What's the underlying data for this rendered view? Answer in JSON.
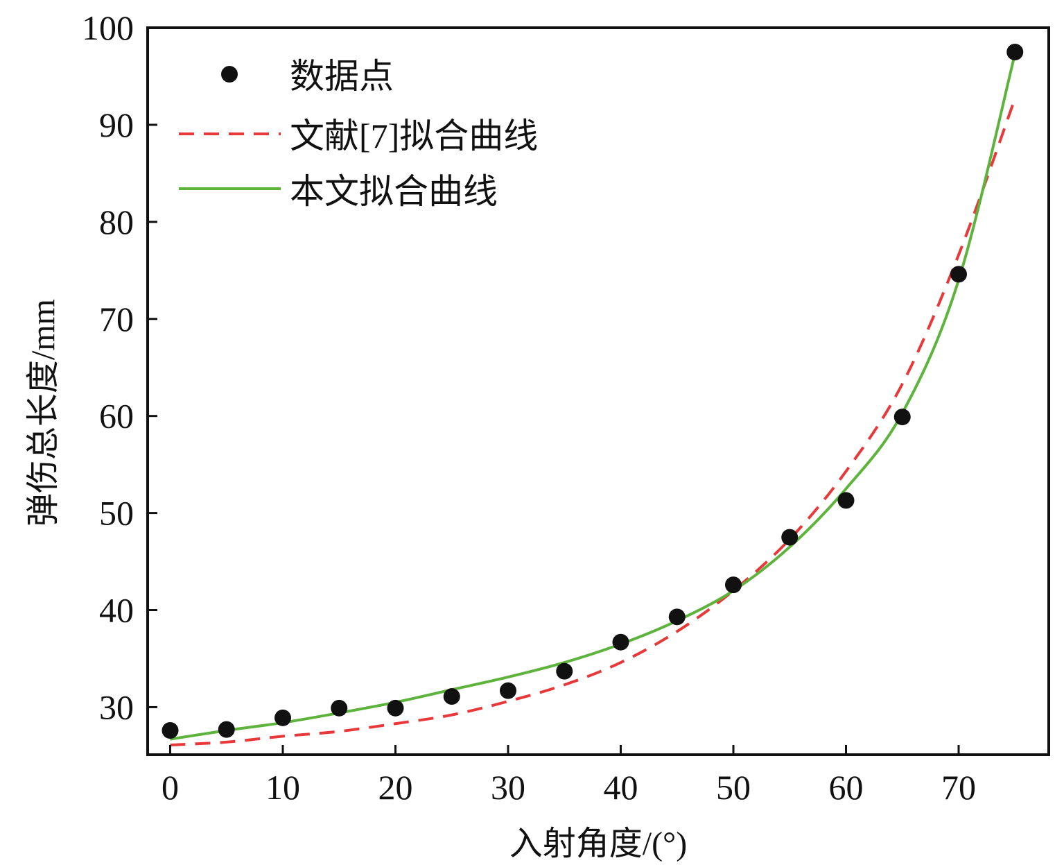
{
  "chart_data": {
    "type": "line",
    "title": "",
    "xlabel": "入射角度/(°)",
    "ylabel": "弹伤总长度/mm",
    "xlim": [
      -2,
      78
    ],
    "ylim": [
      25.1,
      100
    ],
    "xticks": [
      0,
      10,
      20,
      30,
      40,
      50,
      60,
      70
    ],
    "yticks": [
      30,
      40,
      50,
      60,
      70,
      80,
      90,
      100
    ],
    "grid": false,
    "legend_position": "top-left",
    "x": [
      0,
      5,
      10,
      15,
      20,
      25,
      30,
      35,
      40,
      45,
      50,
      55,
      60,
      65,
      70,
      75
    ],
    "series": [
      {
        "name": "数据点",
        "style": "scatter",
        "color": "#111111",
        "values": [
          27.6,
          27.7,
          28.9,
          29.9,
          29.9,
          31.1,
          31.7,
          33.7,
          36.7,
          39.3,
          42.6,
          47.5,
          51.3,
          59.9,
          74.6,
          97.5
        ]
      },
      {
        "name": "文献[7]拟合曲线",
        "style": "dashed",
        "color": "#e8393a",
        "values": [
          26.1,
          26.4,
          27.0,
          27.5,
          28.3,
          29.2,
          30.6,
          32.3,
          34.6,
          37.8,
          42.0,
          47.3,
          54.3,
          63.3,
          76.6,
          92.7
        ]
      },
      {
        "name": "本文拟合曲线",
        "style": "solid",
        "color": "#5db33c",
        "values": [
          26.7,
          27.6,
          28.4,
          29.4,
          30.5,
          31.8,
          33.1,
          34.6,
          36.5,
          38.9,
          42.0,
          46.5,
          52.5,
          60.3,
          74.0,
          97.3
        ]
      }
    ]
  }
}
